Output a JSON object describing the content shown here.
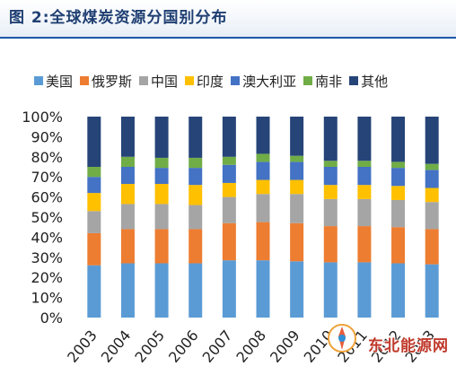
{
  "header": {
    "title": "图 2:全球煤炭资源分国别分布"
  },
  "watermark": {
    "text": "东北能源网"
  },
  "chart_data": {
    "type": "bar",
    "stacked": true,
    "categories": [
      "2003",
      "2004",
      "2005",
      "2006",
      "2007",
      "2008",
      "2009",
      "2010",
      "2011",
      "2012",
      "2013"
    ],
    "ylim": [
      0,
      100
    ],
    "yticks": [
      "0%",
      "10%",
      "20%",
      "30%",
      "40%",
      "50%",
      "60%",
      "70%",
      "80%",
      "90%",
      "100%"
    ],
    "xlabel": "",
    "ylabel": "",
    "legend_position": "top",
    "grid": false,
    "series": [
      {
        "name": "美国",
        "color": "#5b9bd5",
        "values": [
          26,
          27,
          27,
          27,
          28.5,
          28.5,
          28,
          27.5,
          27.5,
          27,
          26.5
        ]
      },
      {
        "name": "俄罗斯",
        "color": "#ed7d31",
        "values": [
          16,
          17,
          17,
          17,
          18.5,
          19,
          19,
          18,
          18,
          18,
          17.5
        ]
      },
      {
        "name": "中国",
        "color": "#a5a5a5",
        "values": [
          11,
          12.5,
          12.5,
          12,
          13,
          14,
          14.5,
          13.5,
          13.5,
          13.5,
          13.5
        ]
      },
      {
        "name": "印度",
        "color": "#ffc000",
        "values": [
          9,
          10,
          10,
          10,
          7,
          7,
          7,
          7,
          7,
          7,
          7
        ]
      },
      {
        "name": "澳大利亚",
        "color": "#4472c4",
        "values": [
          8,
          8.5,
          8,
          8.5,
          9,
          9,
          9,
          9,
          9,
          9,
          9
        ]
      },
      {
        "name": "南非",
        "color": "#70ad47",
        "values": [
          5,
          5,
          5,
          5,
          4,
          4,
          3,
          3,
          3,
          3,
          3
        ]
      },
      {
        "name": "其他",
        "color": "#264478",
        "values": [
          25,
          20,
          20.5,
          20.5,
          20,
          18.5,
          19.5,
          22,
          22,
          22.5,
          23.5
        ]
      }
    ]
  }
}
